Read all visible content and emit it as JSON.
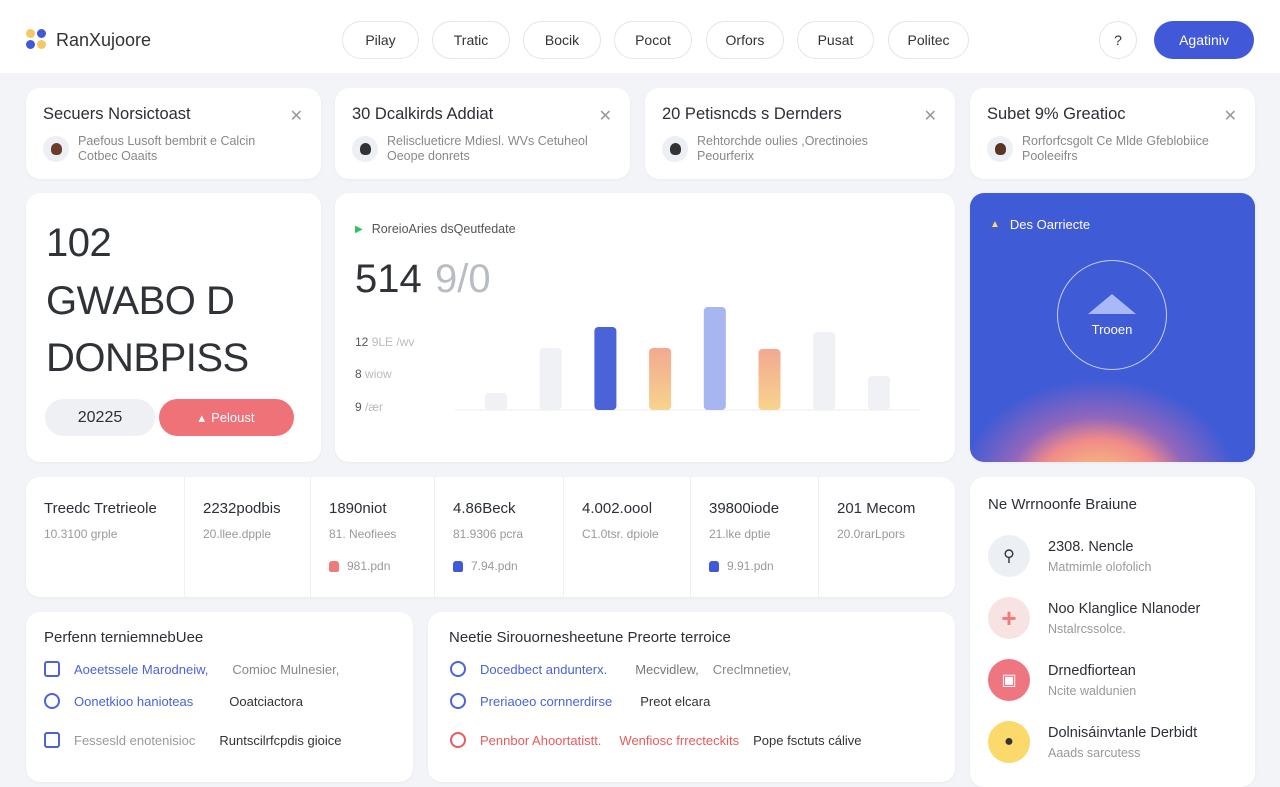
{
  "header": {
    "logo": "RanXujoore",
    "nav": [
      "Pilay",
      "Tratic",
      "Bocik",
      "Pocot",
      "Orfors",
      "Pusat",
      "Politec"
    ],
    "help": "?",
    "cta": "Agatiniv"
  },
  "notifications": [
    {
      "title": "Secuers Norsictoast",
      "text": "Paefous Lusoft bembrit e Calcin Cotbec Oaaits"
    },
    {
      "title": "30 Dcalkirds Addiat",
      "text": "Relisclueticre Mdiesl. WVs Cetuheol Oeope donrets"
    },
    {
      "title": "20 Petisncds s Dernders",
      "text": "Rehtorchde oulies ,Orectinoies Peourferix"
    },
    {
      "title": "Subet 9% Greatioc",
      "text": "Rorforfcsgolt Ce Mlde Gfeblobiice Pooleeifrs"
    }
  ],
  "hero": {
    "line1": "102",
    "line2": "GWABO D",
    "line3": "DONBPISS",
    "year": "20225",
    "action": "Peloust"
  },
  "chart": {
    "label": "RoreioAries dsQeutfedate",
    "value": "514",
    "secondary": "9/0",
    "legend": [
      {
        "num": "12",
        "text": "9LE /wv"
      },
      {
        "num": "8",
        "text": "wiow"
      },
      {
        "num": "9",
        "text": "/ær"
      }
    ],
    "values": [
      17,
      62,
      83,
      62,
      103,
      61,
      78,
      34
    ],
    "colors": [
      "#eff1f4",
      "#eff1f4",
      "#4a63d9",
      "#f3b08e",
      "#a7b5f0",
      "#f3aa8e",
      "#eff1f4",
      "#eff1f4"
    ]
  },
  "promo": {
    "title": "Des Oarriecte",
    "button": "Trooen"
  },
  "stats": [
    {
      "value": "Treedc Tretrieole",
      "sub": "10.3100 grple"
    },
    {
      "value": "2232podbis",
      "sub": "20.llee.dpple"
    },
    {
      "value": "1890niot",
      "sub": "81. Neofiees",
      "trend": "981.pdn",
      "trend_color": "#f07a7a"
    },
    {
      "value": "4.86Beck",
      "sub": "81.9306 pcra",
      "trend": "7.94.pdn",
      "trend_color": "#4158d8"
    },
    {
      "value": "4.002.oool",
      "sub": "C1.0tsr. dpiole"
    },
    {
      "value": "39800iode",
      "sub": "21.lke dptie",
      "trend": "9.91.pdn",
      "trend_color": "#4158d8"
    },
    {
      "value": "201 Mecom",
      "sub": "20.0rarLpors"
    }
  ],
  "right_list": {
    "title": "Ne Wrrnoonfe Braiune",
    "items": [
      {
        "title": "2308. Nencle",
        "sub": "Matmimle olofolich",
        "bg": "#eceff3",
        "fg": "#333"
      },
      {
        "title": "Noo Klanglice Nlanoder",
        "sub": "Nstalrcssolce.",
        "bg": "#f8e3e3",
        "fg": "#ef7a7a"
      },
      {
        "title": "Drnedfiortean",
        "sub": "Ncite waldunien",
        "bg": "#ef7680",
        "fg": "#fff"
      },
      {
        "title": "Dolnisáinvtanle Derbidt",
        "sub": "Aaads sarcutess",
        "bg": "#fbd96a",
        "fg": "#333"
      }
    ]
  },
  "panel_left": {
    "title": "Perfenn terniemnebUee",
    "rows": [
      {
        "a": "Aoeetssele Marodneiw,",
        "b": "Comioc Mulnesier,",
        "a_color": "#4a63d9",
        "b_color": "#888"
      },
      {
        "a": "Oonetkioo hanioteas",
        "b": "Ooatciactora",
        "a_color": "#4a63d9",
        "b_color": "#333"
      },
      {
        "a": "Fessesld enotenisioc",
        "b": "Runtscilrfcpdis gioice",
        "a_color": "#999",
        "b_color": "#333"
      }
    ]
  },
  "panel_right": {
    "title": "Neetie Sirouornesheetune Preorte terroice",
    "rows": [
      {
        "a": "Docedbect andunterx.",
        "b": "Mecvidlew,",
        "c": "Creclmnetiev,",
        "a_color": "#4a63d9",
        "b_color": "#777",
        "c_color": "#888"
      },
      {
        "a": "Preriaoeo cornnerdirse",
        "b": "Preot elcara",
        "c": "",
        "a_color": "#4a63d9",
        "b_color": "#333",
        "c_color": "#333"
      },
      {
        "a": "Pennbor Ahoortatistt.",
        "b": "Wenfiosc frrecteckits",
        "c": "Pope fsctuts cálive",
        "a_color": "#ea5a5a",
        "b_color": "#ea5a5a",
        "c_color": "#333"
      }
    ]
  }
}
